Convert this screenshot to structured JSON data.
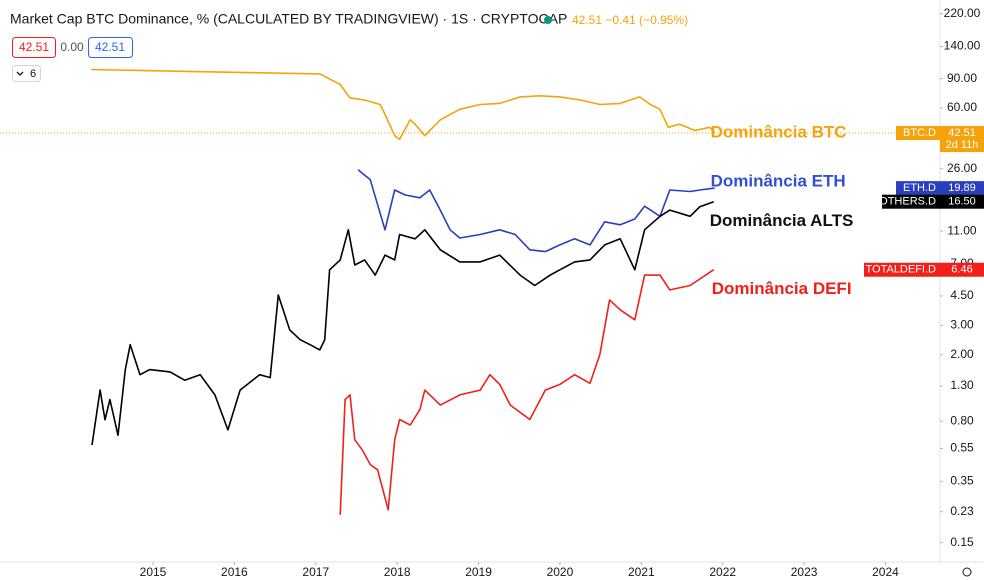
{
  "chart_data": {
    "type": "line",
    "title": "Market Cap BTC Dominance, % (CALCULATED BY TRADINGVIEW) · 1S · CRYPTOCAP",
    "quote": "42.51 −0.41 (−0.95%)",
    "inputs": [
      "42.51",
      "0.00",
      "42.51"
    ],
    "indicator_count": "6",
    "countdown": "2d 11h",
    "log_scale": true,
    "grid": false,
    "xlim": [
      2013.12,
      2024.67
    ],
    "xticks": [
      2015,
      2016,
      2017,
      2018,
      2019,
      2020,
      2021,
      2022,
      2023,
      2024
    ],
    "ylim": [
      0.115,
      266
    ],
    "yticks": [
      {
        "value": 220,
        "label": "220.00"
      },
      {
        "value": 140,
        "label": "140.00"
      },
      {
        "value": 90,
        "label": "90.00"
      },
      {
        "value": 60,
        "label": "60.00"
      },
      {
        "value": 26,
        "label": "26.00"
      },
      {
        "value": 11,
        "label": "11.00"
      },
      {
        "value": 7,
        "label": "7.00"
      },
      {
        "value": 4.5,
        "label": "4.50"
      },
      {
        "value": 3,
        "label": "3.00"
      },
      {
        "value": 2,
        "label": "2.00"
      },
      {
        "value": 1.3,
        "label": "1.30"
      },
      {
        "value": 0.8,
        "label": "0.80"
      },
      {
        "value": 0.55,
        "label": "0.55"
      },
      {
        "value": 0.35,
        "label": "0.35"
      },
      {
        "value": 0.23,
        "label": "0.23"
      },
      {
        "value": 0.15,
        "label": "0.15"
      }
    ],
    "series": [
      {
        "name": "Dominância BTC",
        "ticker": "BTC.D",
        "end_label": "42.51",
        "color": "#f5a30b",
        "x": [
          2014.24,
          2015.58,
          2016.56,
          2017.05,
          2017.3,
          2017.42,
          2017.6,
          2017.79,
          2017.85,
          2017.97,
          2018.03,
          2018.16,
          2018.22,
          2018.34,
          2018.53,
          2018.77,
          2019.02,
          2019.26,
          2019.51,
          2019.75,
          2020.0,
          2020.25,
          2020.49,
          2020.74,
          2020.98,
          2021.11,
          2021.23,
          2021.33,
          2021.47,
          2021.66,
          2021.84,
          2021.9
        ],
        "values": [
          102,
          99,
          97,
          96,
          83,
          69,
          67,
          63,
          55,
          41,
          39,
          51,
          48,
          41,
          51,
          59,
          63,
          64,
          70,
          71,
          70,
          67,
          63,
          64,
          70,
          63,
          59,
          46,
          48,
          44,
          46,
          42.51
        ]
      },
      {
        "name": "Dominância ETH",
        "ticker": "ETH.D",
        "end_label": "19.89",
        "color": "#2a3fbd",
        "x": [
          2017.52,
          2017.67,
          2017.85,
          2017.97,
          2018.1,
          2018.28,
          2018.4,
          2018.53,
          2018.65,
          2018.77,
          2019.02,
          2019.26,
          2019.45,
          2019.63,
          2019.82,
          2020.0,
          2020.18,
          2020.37,
          2020.55,
          2020.74,
          2020.92,
          2021.04,
          2021.23,
          2021.35,
          2021.6,
          2021.72,
          2021.9
        ],
        "values": [
          25.6,
          22.3,
          11.2,
          19.4,
          18.1,
          17.4,
          19.4,
          14.7,
          11.2,
          10.0,
          10.5,
          11.2,
          10.5,
          8.5,
          8.3,
          9.1,
          9.9,
          9.1,
          12.5,
          12.0,
          13.0,
          15.5,
          13.5,
          19.4,
          19.0,
          19.4,
          19.89
        ]
      },
      {
        "name": "Dominância ALTS",
        "ticker": "OTHERS.D",
        "end_label": "16.50",
        "color": "#000000",
        "x": [
          2014.25,
          2014.35,
          2014.41,
          2014.47,
          2014.57,
          2014.66,
          2014.72,
          2014.84,
          2014.96,
          2015.21,
          2015.39,
          2015.58,
          2015.76,
          2015.92,
          2016.07,
          2016.31,
          2016.44,
          2016.54,
          2016.68,
          2016.81,
          2016.93,
          2017.05,
          2017.11,
          2017.17,
          2017.3,
          2017.4,
          2017.48,
          2017.6,
          2017.73,
          2017.85,
          2017.97,
          2018.03,
          2018.22,
          2018.34,
          2018.53,
          2018.77,
          2019.02,
          2019.26,
          2019.51,
          2019.69,
          2019.88,
          2020.0,
          2020.18,
          2020.37,
          2020.55,
          2020.74,
          2020.92,
          2021.04,
          2021.23,
          2021.35,
          2021.6,
          2021.72,
          2021.89
        ],
        "values": [
          0.577,
          1.23,
          0.816,
          1.08,
          0.66,
          1.63,
          2.3,
          1.52,
          1.63,
          1.58,
          1.41,
          1.52,
          1.15,
          0.71,
          1.23,
          1.52,
          1.46,
          4.56,
          2.82,
          2.46,
          2.3,
          2.14,
          2.46,
          6.45,
          7.4,
          11.2,
          6.9,
          7.4,
          6.0,
          7.9,
          7.4,
          10.5,
          9.9,
          11.2,
          8.5,
          7.2,
          7.2,
          7.9,
          6.0,
          5.2,
          6.0,
          6.45,
          7.2,
          7.4,
          9.1,
          9.9,
          6.45,
          11.2,
          13.5,
          14.7,
          13.5,
          15.4,
          16.5
        ]
      },
      {
        "name": "Dominância DEFI",
        "ticker": "TOTALDEFI.D",
        "end_label": "6.46",
        "color": "#f0201a",
        "x": [
          2017.3,
          2017.36,
          2017.42,
          2017.48,
          2017.57,
          2017.67,
          2017.76,
          2017.89,
          2017.97,
          2018.03,
          2018.16,
          2018.28,
          2018.34,
          2018.53,
          2018.77,
          2019.02,
          2019.14,
          2019.26,
          2019.39,
          2019.63,
          2019.82,
          2020.0,
          2020.18,
          2020.37,
          2020.49,
          2020.61,
          2020.74,
          2020.92,
          2021.04,
          2021.23,
          2021.35,
          2021.6,
          2021.89
        ],
        "values": [
          0.22,
          1.08,
          1.15,
          0.62,
          0.54,
          0.44,
          0.41,
          0.236,
          0.62,
          0.82,
          0.76,
          0.94,
          1.23,
          1.0,
          1.15,
          1.23,
          1.52,
          1.33,
          1.0,
          0.82,
          1.23,
          1.33,
          1.52,
          1.35,
          2.0,
          4.26,
          3.72,
          3.24,
          6.0,
          6.0,
          4.89,
          5.2,
          6.46
        ]
      }
    ]
  }
}
